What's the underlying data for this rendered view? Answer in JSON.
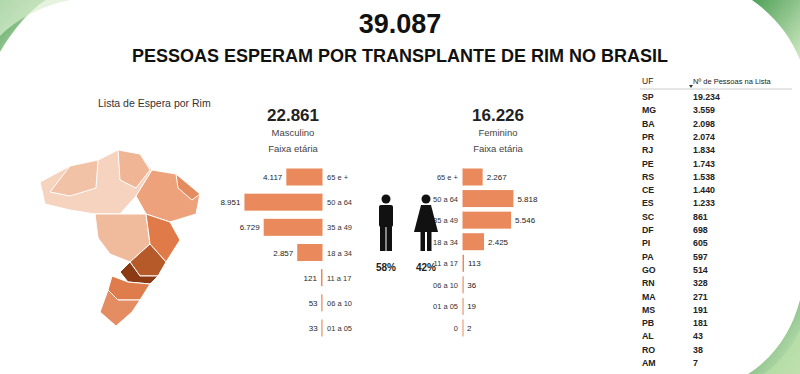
{
  "header": {
    "total": "39.087",
    "title": "PESSOAS ESPERAM POR TRANSPLANTE DE RIM NO BRASIL"
  },
  "map": {
    "title": "Lista de Espera por Rim"
  },
  "chart_data": [
    {
      "type": "bar",
      "orientation": "horizontal",
      "title": "22.861",
      "subtitle": "Masculino",
      "y_label": "Faixa etária",
      "categories": [
        "65 e +",
        "50 a 64",
        "35 a 49",
        "18 a 34",
        "11 a 17",
        "06 a 10",
        "01 a 05"
      ],
      "values": [
        4117,
        8951,
        6729,
        2857,
        121,
        53,
        33
      ],
      "value_labels": [
        "4.117",
        "8.951",
        "6.729",
        "2.857",
        "121",
        "53",
        "33"
      ],
      "data_labels": true,
      "tick_labels": "y",
      "xlim": [
        0,
        9000
      ],
      "color": "#e9895c"
    },
    {
      "type": "bar",
      "orientation": "horizontal",
      "title": "16.226",
      "subtitle": "Feminino",
      "y_label": "Faixa etária",
      "categories": [
        "65 e +",
        "50 a 64",
        "35 a 49",
        "18 a 34",
        "11 a 17",
        "06 a 10",
        "01 a 05",
        "0"
      ],
      "values": [
        2267,
        5818,
        5546,
        2425,
        113,
        36,
        19,
        2
      ],
      "value_labels": [
        "2.267",
        "5.818",
        "5.546",
        "2.425",
        "113",
        "36",
        "19",
        "2"
      ],
      "data_labels": true,
      "tick_labels": "y",
      "xlim": [
        0,
        9000
      ],
      "color": "#e9895c"
    }
  ],
  "gender_share": [
    "58%",
    "42%"
  ],
  "table": {
    "columns": [
      "UF",
      "Nº de Pessoas na Lista"
    ],
    "rows": [
      [
        "SP",
        "19.234"
      ],
      [
        "MG",
        "3.559"
      ],
      [
        "BA",
        "2.098"
      ],
      [
        "PR",
        "2.074"
      ],
      [
        "RJ",
        "1.834"
      ],
      [
        "PE",
        "1.743"
      ],
      [
        "RS",
        "1.538"
      ],
      [
        "CE",
        "1.440"
      ],
      [
        "ES",
        "1.233"
      ],
      [
        "SC",
        "861"
      ],
      [
        "DF",
        "698"
      ],
      [
        "PI",
        "605"
      ],
      [
        "PA",
        "597"
      ],
      [
        "GO",
        "514"
      ],
      [
        "RN",
        "328"
      ],
      [
        "MA",
        "271"
      ],
      [
        "MS",
        "191"
      ],
      [
        "PB",
        "181"
      ],
      [
        "AL",
        "43"
      ],
      [
        "RO",
        "38"
      ],
      [
        "AM",
        "7"
      ]
    ]
  }
}
